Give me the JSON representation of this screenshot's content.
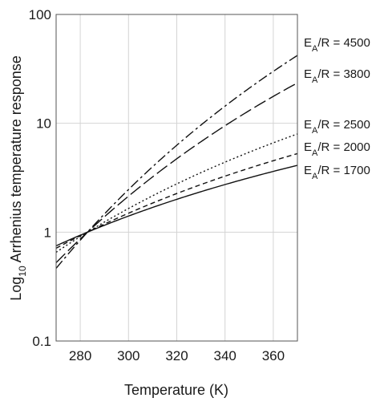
{
  "chart_data": {
    "type": "line",
    "title": "",
    "xlabel": "Temperature (K)",
    "ylabel": {
      "prefix": "Log",
      "subscript": "10",
      "rest": " Arrhenius temperature response"
    },
    "xlim": [
      270,
      370
    ],
    "ylim": [
      0.1,
      100
    ],
    "yscale": "log",
    "grid": true,
    "reference_temperature": 283,
    "x_ticks": [
      280,
      300,
      320,
      340,
      360
    ],
    "y_ticks": [
      0.1,
      1,
      10,
      100
    ],
    "y_tick_labels": [
      "0.1",
      "1",
      "10",
      "100"
    ],
    "legend": "series labels at right end of lines",
    "series": [
      {
        "name": "4500",
        "label_prefix": "E",
        "label_sub": "A",
        "label_rest": "/R = 4500",
        "ea_over_r": 4500,
        "dash": "12,4,3,4",
        "x": [
          270,
          280,
          283,
          300,
          320,
          340,
          360,
          370
        ],
        "values": [
          0.46,
          0.84,
          1.0,
          2.46,
          6.35,
          14.9,
          32.1,
          48.0
        ]
      },
      {
        "name": "3800",
        "label_prefix": "E",
        "label_sub": "A",
        "label_rest": "/R = 3800",
        "ea_over_r": 3800,
        "dash": "16,5",
        "x": [
          270,
          280,
          283,
          300,
          320,
          340,
          360,
          370
        ],
        "values": [
          0.52,
          0.87,
          1.0,
          2.14,
          4.75,
          9.8,
          18.9,
          26.2
        ]
      },
      {
        "name": "2500",
        "label_prefix": "E",
        "label_sub": "A",
        "label_rest": "/R = 2500",
        "ea_over_r": 2500,
        "dash": "2,3",
        "x": [
          270,
          280,
          283,
          300,
          320,
          340,
          360,
          370
        ],
        "values": [
          0.65,
          0.91,
          1.0,
          1.65,
          2.78,
          4.47,
          6.91,
          8.55
        ]
      },
      {
        "name": "2000",
        "label_prefix": "E",
        "label_sub": "A",
        "label_rest": "/R = 2000",
        "ea_over_r": 2000,
        "dash": "6,4",
        "x": [
          270,
          280,
          283,
          300,
          320,
          340,
          360,
          370
        ],
        "values": [
          0.71,
          0.93,
          1.0,
          1.49,
          2.26,
          3.31,
          4.69,
          5.55
        ]
      },
      {
        "name": "1700",
        "label_prefix": "E",
        "label_sub": "A",
        "label_rest": "/R = 1700",
        "ea_over_r": 1700,
        "dash": "",
        "x": [
          270,
          280,
          283,
          300,
          320,
          340,
          360,
          370
        ],
        "values": [
          0.75,
          0.94,
          1.0,
          1.4,
          2.0,
          2.77,
          3.72,
          4.29
        ]
      }
    ]
  }
}
